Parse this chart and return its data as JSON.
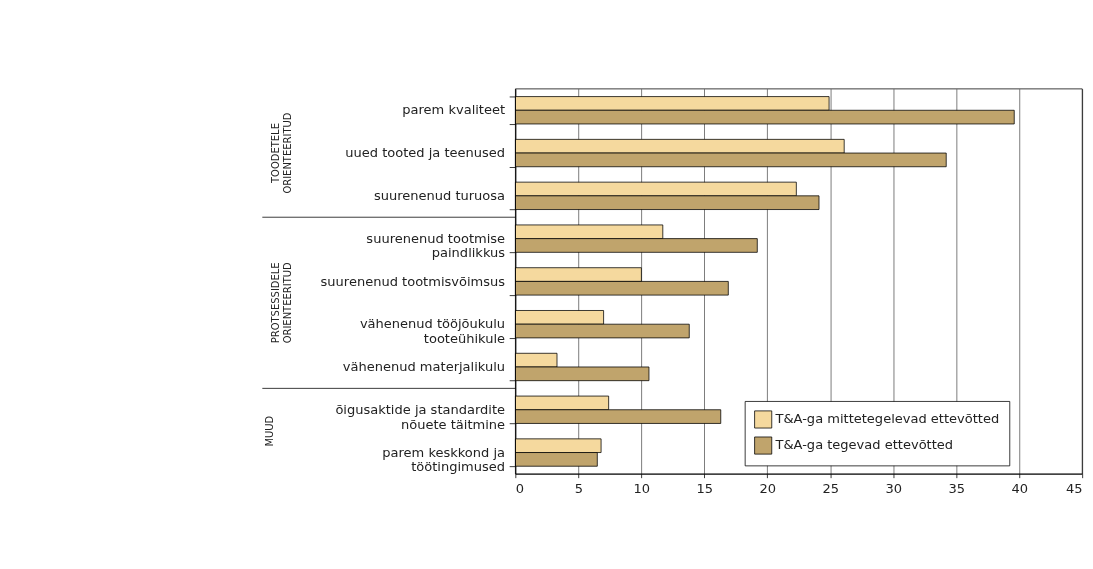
{
  "chart_data": {
    "type": "bar",
    "orientation": "horizontal",
    "categories": [
      "parem kvaliteet",
      "uued tooted ja teenused",
      "suurenenud turuosa",
      "suurenenud tootmise\npaindlikkus",
      "suurenenud tootmisvõimsus",
      "vähenenud tööjõukulu\ntooteühikule",
      "vähenenud materjalikulu",
      "õigusaktide ja standardite\nnõuete täitmine",
      "parem keskkond ja\ntöötingimused"
    ],
    "series": [
      {
        "name": "T&A-ga mittetegelevad ettevõtted",
        "color": "#f5d99e",
        "values": [
          24.9,
          26.1,
          22.3,
          11.7,
          10.0,
          7.0,
          3.3,
          7.4,
          6.8
        ]
      },
      {
        "name": "T&A-ga tegevad ettevõtted",
        "color": "#c0a46c",
        "values": [
          39.6,
          34.2,
          24.1,
          19.2,
          16.9,
          13.8,
          10.6,
          16.3,
          6.5
        ]
      }
    ],
    "xlim": [
      0,
      45
    ],
    "xticks": [
      0,
      5,
      10,
      15,
      20,
      25,
      30,
      35,
      40,
      45
    ],
    "grid": "x",
    "legend": "bottom right",
    "annotations": [
      "TOODETELE\nORIENTEERITUD",
      "PROTSESSIDELE\nORIENTEERITUD",
      "MUUD"
    ]
  }
}
